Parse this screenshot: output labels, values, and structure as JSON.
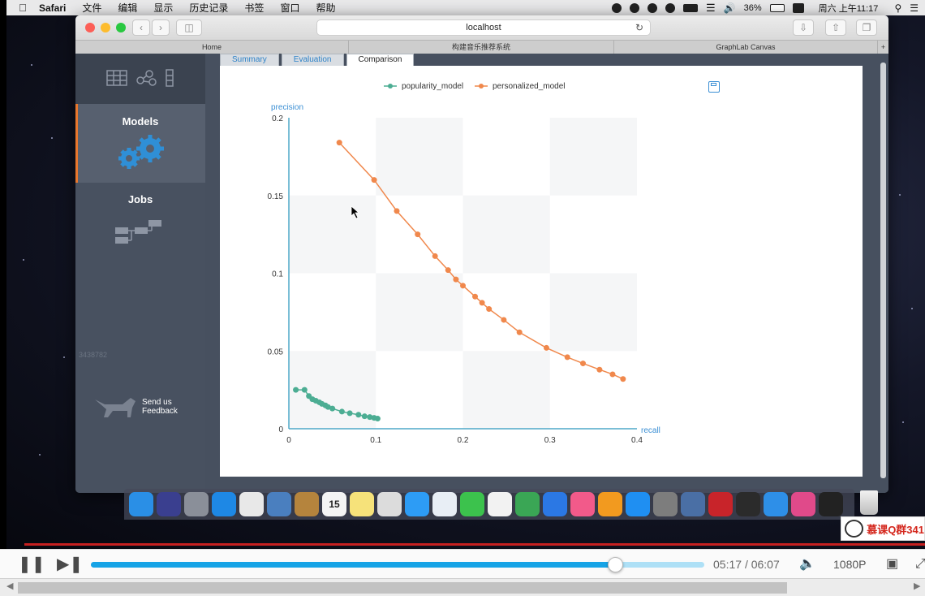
{
  "menubar": {
    "apple_icon": "apple-icon",
    "app_name": "Safari",
    "items": [
      "文件",
      "编辑",
      "显示",
      "历史记录",
      "书签",
      "窗口",
      "帮助"
    ],
    "battery": "36%",
    "clock": "周六 上午11:17"
  },
  "browser": {
    "url": "localhost",
    "tabs": [
      "Home",
      "构建音乐推荐系统",
      "GraphLab Canvas"
    ]
  },
  "sidebar": {
    "models_label": "Models",
    "jobs_label": "Jobs",
    "feedback_label_1": "Send us",
    "feedback_label_2": "Feedback",
    "watermark": "3438782"
  },
  "content": {
    "tabs": [
      "Summary",
      "Evaluation",
      "Comparison"
    ],
    "active_tab": "Comparison"
  },
  "chart_data": {
    "type": "line",
    "xlabel": "recall",
    "ylabel": "precision",
    "xlim": [
      0,
      0.4
    ],
    "ylim": [
      0,
      0.2
    ],
    "xticks": [
      "0",
      "0.1",
      "0.2",
      "0.3",
      "0.4"
    ],
    "yticks": [
      "0",
      "0.05",
      "0.1",
      "0.15",
      "0.2"
    ],
    "legend_position": "top",
    "series": [
      {
        "name": "popularity_model",
        "color": "#4cad93",
        "points": [
          [
            0.008,
            0.025
          ],
          [
            0.018,
            0.025
          ],
          [
            0.023,
            0.021
          ],
          [
            0.027,
            0.019
          ],
          [
            0.031,
            0.018
          ],
          [
            0.035,
            0.017
          ],
          [
            0.038,
            0.016
          ],
          [
            0.042,
            0.015
          ],
          [
            0.045,
            0.014
          ],
          [
            0.05,
            0.013
          ],
          [
            0.061,
            0.011
          ],
          [
            0.07,
            0.01
          ],
          [
            0.08,
            0.009
          ],
          [
            0.087,
            0.008
          ],
          [
            0.093,
            0.0075
          ],
          [
            0.098,
            0.007
          ],
          [
            0.102,
            0.0065
          ]
        ]
      },
      {
        "name": "personalized_model",
        "color": "#f0884c",
        "points": [
          [
            0.058,
            0.184
          ],
          [
            0.098,
            0.16
          ],
          [
            0.124,
            0.14
          ],
          [
            0.148,
            0.125
          ],
          [
            0.168,
            0.111
          ],
          [
            0.183,
            0.102
          ],
          [
            0.192,
            0.096
          ],
          [
            0.2,
            0.092
          ],
          [
            0.214,
            0.085
          ],
          [
            0.222,
            0.081
          ],
          [
            0.23,
            0.077
          ],
          [
            0.247,
            0.07
          ],
          [
            0.265,
            0.062
          ],
          [
            0.296,
            0.052
          ],
          [
            0.32,
            0.046
          ],
          [
            0.338,
            0.042
          ],
          [
            0.357,
            0.038
          ],
          [
            0.372,
            0.035
          ],
          [
            0.384,
            0.032
          ]
        ]
      }
    ]
  },
  "dock": {
    "apps": [
      "finder-icon",
      "siri-icon",
      "launchpad-icon",
      "safari-icon",
      "chrome-icon",
      "preview-icon",
      "notes-book-icon",
      "calendar-icon",
      "stickies-icon",
      "photos-preview-icon",
      "messages-icon",
      "textedit-icon",
      "facetime-icon",
      "photos-icon",
      "numbers-icon",
      "keynote-icon",
      "itunes-icon",
      "ibooks-icon",
      "appstore-icon",
      "system-prefs-icon",
      "image-capture-icon",
      "red-stamp-icon",
      "quicktime-icon",
      "quicktime-blue-icon",
      "graphlab-icon",
      "terminal-icon"
    ],
    "calendar_day": "15"
  },
  "overlay": {
    "text": "慕课Q群341"
  },
  "player": {
    "current_time": "05:17",
    "separator": "/",
    "duration": "06:07",
    "progress": 0.855,
    "quality": "1080P"
  }
}
